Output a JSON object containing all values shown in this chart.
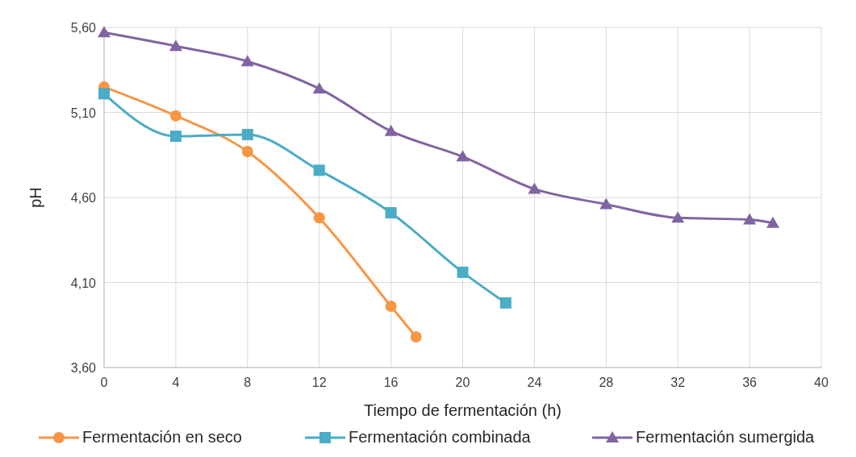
{
  "chart_data": {
    "type": "line",
    "xlabel": "Tiempo de fermentación (h)",
    "ylabel": "pH",
    "xlim": [
      0,
      40
    ],
    "xticks": [
      0,
      4,
      8,
      12,
      16,
      20,
      24,
      28,
      32,
      36,
      40
    ],
    "ylim": [
      3.6,
      5.6
    ],
    "yticks": [
      {
        "value": 3.6,
        "label": "3,60"
      },
      {
        "value": 4.1,
        "label": "4,10"
      },
      {
        "value": 4.6,
        "label": "4,60"
      },
      {
        "value": 5.1,
        "label": "5,10"
      },
      {
        "value": 5.6,
        "label": "5,60"
      }
    ],
    "grid": true,
    "legend": "bottom",
    "line_style": "solid",
    "series": [
      {
        "name": "Fermentación en seco",
        "color": "#f79646",
        "marker": "circle",
        "x": [
          0,
          4,
          8,
          12,
          16,
          17.4
        ],
        "values": [
          5.25,
          5.08,
          4.87,
          4.48,
          3.96,
          3.78
        ]
      },
      {
        "name": "Fermentación combinada",
        "color": "#4bacc6",
        "marker": "square",
        "x": [
          0,
          4,
          8,
          12,
          16,
          20,
          22.4
        ],
        "values": [
          5.21,
          4.96,
          4.97,
          4.76,
          4.51,
          4.16,
          3.98
        ]
      },
      {
        "name": "Fermentación sumergida",
        "color": "#8064a2",
        "marker": "triangle",
        "x": [
          0,
          4,
          8,
          12,
          16,
          20,
          24,
          28,
          32,
          36,
          37.3
        ],
        "values": [
          5.57,
          5.49,
          5.4,
          5.24,
          4.99,
          4.84,
          4.65,
          4.56,
          4.48,
          4.47,
          4.45
        ]
      }
    ]
  }
}
